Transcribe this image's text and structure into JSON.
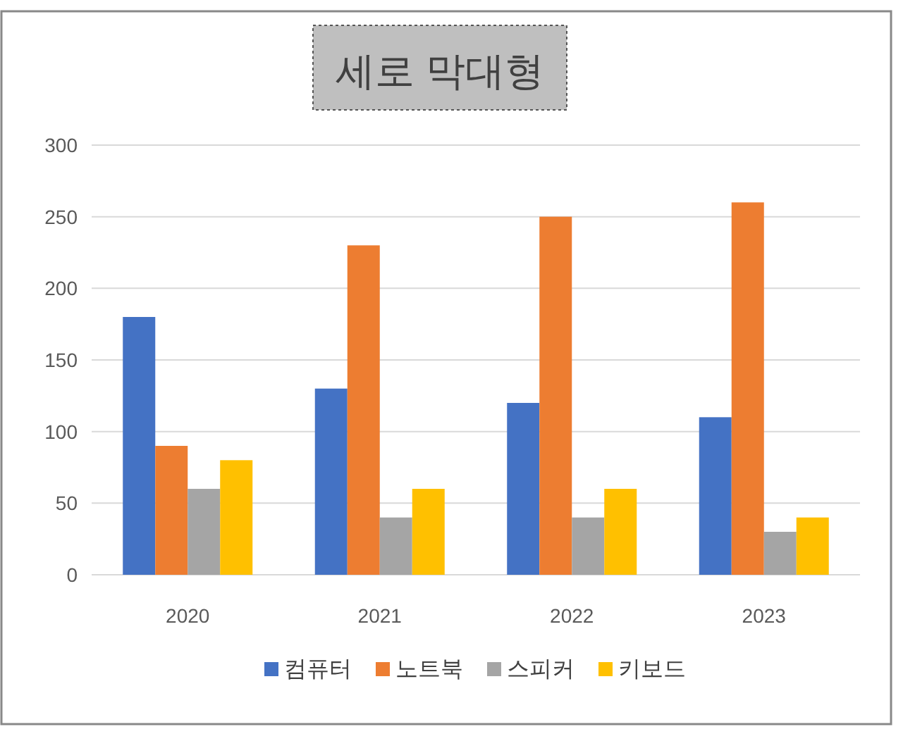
{
  "chart_data": {
    "type": "bar",
    "title": "세로 막대형",
    "categories": [
      "2020",
      "2021",
      "2022",
      "2023"
    ],
    "series": [
      {
        "name": "컴퓨터",
        "color": "#4472c4",
        "values": [
          180,
          130,
          120,
          110
        ]
      },
      {
        "name": "노트북",
        "color": "#ed7d31",
        "values": [
          90,
          230,
          250,
          260
        ]
      },
      {
        "name": "스피커",
        "color": "#a5a5a5",
        "values": [
          60,
          40,
          40,
          30
        ]
      },
      {
        "name": "키보드",
        "color": "#ffc000",
        "values": [
          80,
          60,
          60,
          40
        ]
      }
    ],
    "ylim": [
      0,
      300
    ],
    "yticks": [
      0,
      50,
      100,
      150,
      200,
      250,
      300
    ],
    "grid": "y",
    "legend": "bottom"
  }
}
